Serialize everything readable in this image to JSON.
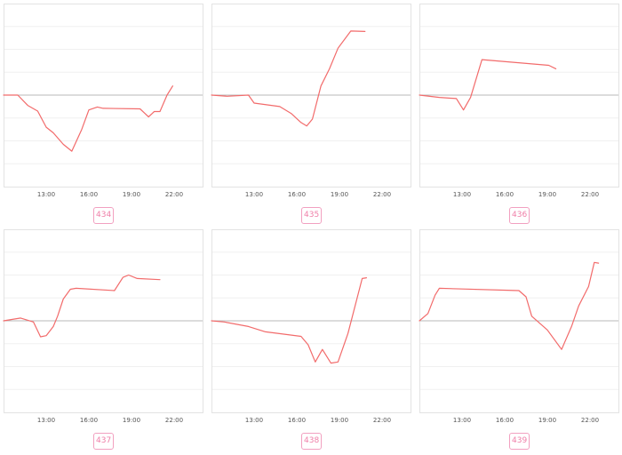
{
  "colors": {
    "line": "#f26b6b",
    "badge_text": "#ef7fa8",
    "badge_border": "#f2a0c0"
  },
  "chart_data": [
    {
      "type": "line",
      "badge": "434",
      "xticks": [
        "13:00",
        "16:00",
        "19:00",
        "22:00"
      ],
      "xlim": [
        10.0,
        24.0
      ],
      "ylim": [
        -4,
        4
      ],
      "x": [
        10.0,
        11.0,
        11.7,
        12.4,
        13.0,
        13.5,
        14.2,
        14.8,
        15.5,
        16.0,
        16.6,
        17.0,
        19.6,
        20.2,
        20.6,
        21.0,
        21.5,
        21.9
      ],
      "y": [
        0.0,
        0.0,
        -0.45,
        -0.7,
        -1.4,
        -1.65,
        -2.15,
        -2.45,
        -1.5,
        -0.65,
        -0.52,
        -0.58,
        -0.6,
        -0.95,
        -0.72,
        -0.72,
        0.0,
        0.4
      ]
    },
    {
      "type": "line",
      "badge": "435",
      "xticks": [
        "13:00",
        "16:00",
        "19:00",
        "22:00"
      ],
      "xlim": [
        10.0,
        24.0
      ],
      "ylim": [
        -4,
        4
      ],
      "x": [
        10.0,
        11.1,
        12.6,
        13.0,
        14.8,
        15.6,
        16.3,
        16.7,
        17.1,
        17.7,
        18.3,
        18.9,
        19.8,
        20.8
      ],
      "y": [
        0.0,
        -0.05,
        0.0,
        -0.35,
        -0.5,
        -0.8,
        -1.2,
        -1.35,
        -1.05,
        0.4,
        1.15,
        2.05,
        2.8,
        2.78
      ]
    },
    {
      "type": "line",
      "badge": "436",
      "xticks": [
        "13:00",
        "16:00",
        "19:00",
        "22:00"
      ],
      "xlim": [
        10.0,
        24.0
      ],
      "ylim": [
        -4,
        4
      ],
      "x": [
        10.0,
        11.4,
        12.6,
        13.1,
        13.6,
        14.4,
        19.1,
        19.6
      ],
      "y": [
        0.0,
        -0.1,
        -0.15,
        -0.65,
        -0.1,
        1.55,
        1.3,
        1.15
      ]
    },
    {
      "type": "line",
      "badge": "437",
      "xticks": [
        "13:00",
        "16:00",
        "19:00",
        "22:00"
      ],
      "xlim": [
        10.0,
        24.0
      ],
      "ylim": [
        -4,
        4
      ],
      "x": [
        10.0,
        11.2,
        12.1,
        12.6,
        13.0,
        13.5,
        13.8,
        14.2,
        14.7,
        15.1,
        17.8,
        18.4,
        18.8,
        19.4,
        21.0
      ],
      "y": [
        0.0,
        0.12,
        -0.05,
        -0.7,
        -0.65,
        -0.25,
        0.2,
        0.95,
        1.38,
        1.42,
        1.32,
        1.9,
        2.0,
        1.85,
        1.8
      ]
    },
    {
      "type": "line",
      "badge": "438",
      "xticks": [
        "13:00",
        "16:00",
        "19:00",
        "22:00"
      ],
      "xlim": [
        10.0,
        24.0
      ],
      "ylim": [
        -4,
        4
      ],
      "x": [
        10.0,
        10.9,
        12.6,
        13.8,
        16.3,
        16.8,
        17.3,
        17.8,
        18.4,
        18.9,
        19.6,
        20.6,
        20.9
      ],
      "y": [
        0.0,
        -0.05,
        -0.25,
        -0.48,
        -0.68,
        -1.05,
        -1.8,
        -1.25,
        -1.85,
        -1.8,
        -0.55,
        1.85,
        1.88
      ]
    },
    {
      "type": "line",
      "badge": "439",
      "xticks": [
        "13:00",
        "16:00",
        "19:00",
        "22:00"
      ],
      "xlim": [
        10.0,
        24.0
      ],
      "ylim": [
        -4,
        4
      ],
      "x": [
        10.0,
        10.6,
        11.1,
        11.4,
        17.0,
        17.5,
        17.9,
        19.0,
        20.0,
        20.7,
        21.2,
        21.9,
        22.3,
        22.6
      ],
      "y": [
        0.0,
        0.32,
        1.12,
        1.42,
        1.32,
        1.05,
        0.2,
        -0.4,
        -1.25,
        -0.25,
        0.65,
        1.5,
        2.55,
        2.52
      ]
    }
  ]
}
